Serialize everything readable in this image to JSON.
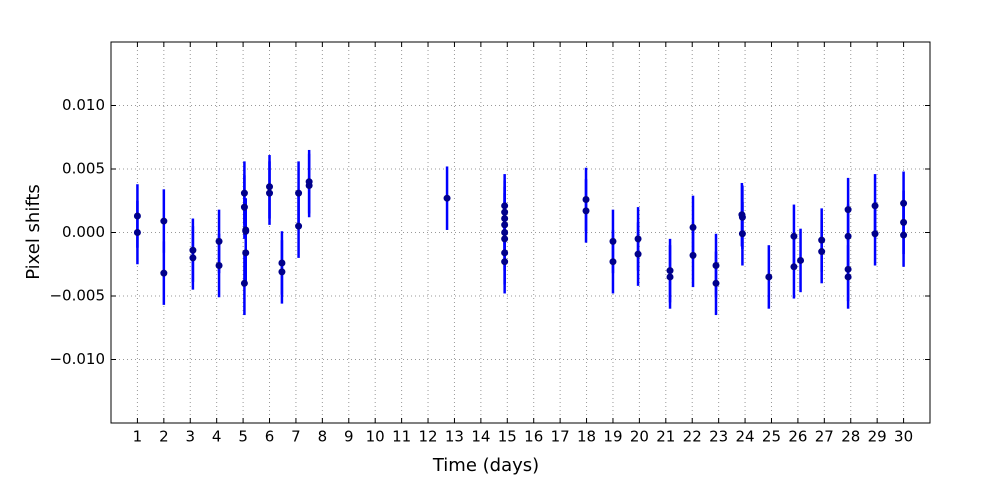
{
  "chart_data": {
    "type": "errorbar",
    "xlabel": "Time (days)",
    "ylabel": "Pixel shifts",
    "xlim": [
      0,
      31
    ],
    "ylim": [
      -0.015,
      0.015
    ],
    "xticks": [
      1,
      2,
      3,
      4,
      5,
      6,
      7,
      8,
      9,
      10,
      11,
      12,
      13,
      14,
      15,
      16,
      17,
      18,
      19,
      20,
      21,
      22,
      23,
      24,
      25,
      26,
      27,
      28,
      29,
      30
    ],
    "yticks": [
      {
        "value": -0.01,
        "label": "−0.010"
      },
      {
        "value": -0.005,
        "label": "−0.005"
      },
      {
        "value": 0,
        "label": "0.000"
      },
      {
        "value": 0.005,
        "label": "0.005"
      },
      {
        "value": 0.01,
        "label": "0.010"
      }
    ],
    "grid": true,
    "series": [
      {
        "color": "#0000ff",
        "marker_color": "#00008b",
        "x": [
          1,
          1,
          2,
          2,
          3.1,
          3.1,
          4.09,
          4.09,
          5.05,
          5.05,
          5.1,
          5.1,
          5.1,
          5.05,
          6,
          6,
          6.47,
          6.47,
          7.1,
          7.1,
          7.5,
          7.5,
          12.72,
          14.9,
          14.9,
          14.9,
          14.9,
          14.9,
          14.9,
          14.9,
          14.9,
          17.98,
          17.98,
          19,
          19,
          19.95,
          19.95,
          21.16,
          21.16,
          22.03,
          22.03,
          22.9,
          22.9,
          23.88,
          23.9,
          23.9,
          24.9,
          25.85,
          25.85,
          26.1,
          26.9,
          26.9,
          27.9,
          27.9,
          27.9,
          27.9,
          28.92,
          28.92,
          30,
          30,
          30
        ],
        "values": [
          0.0013,
          0,
          0.0009,
          -0.0032,
          -0.0014,
          -0.002,
          -0.0007,
          -0.0026,
          0.0031,
          0.002,
          0.0002,
          0.0001,
          -0.0016,
          -0.004,
          0.0036,
          0.0031,
          -0.0024,
          -0.0031,
          0.0031,
          0.0005,
          0.004,
          0.0037,
          0.0027,
          0.0021,
          0.0016,
          0.0011,
          0.0006,
          0,
          -0.0005,
          -0.0016,
          -0.0023,
          0.0026,
          0.0017,
          -0.0007,
          -0.0023,
          -0.0005,
          -0.0017,
          -0.003,
          -0.0035,
          0.0004,
          -0.0018,
          -0.0026,
          -0.004,
          0.0014,
          0.0012,
          -0.0001,
          -0.0035,
          -0.0003,
          -0.0027,
          -0.0022,
          -0.0006,
          -0.0015,
          0.0018,
          -0.0003,
          -0.0029,
          -0.0035,
          0.0021,
          -0.0001,
          0.0023,
          0.0008,
          -0.0002
        ],
        "errors": [
          0.0025,
          0.0025,
          0.0025,
          0.0025,
          0.0025,
          0.0025,
          0.0025,
          0.0025,
          0.0025,
          0.0025,
          0.0025,
          0.0025,
          0.0025,
          0.0025,
          0.0025,
          0.0025,
          0.0025,
          0.0025,
          0.0025,
          0.0025,
          0.0025,
          0.0025,
          0.0025,
          0.0025,
          0.0025,
          0.0025,
          0.0025,
          0.0025,
          0.0025,
          0.0025,
          0.0025,
          0.0025,
          0.0025,
          0.0025,
          0.0025,
          0.0025,
          0.0025,
          0.0025,
          0.0025,
          0.0025,
          0.0025,
          0.0025,
          0.0025,
          0.0025,
          0.0025,
          0.0025,
          0.0025,
          0.0025,
          0.0025,
          0.0025,
          0.0025,
          0.0025,
          0.0025,
          0.0025,
          0.0025,
          0.0025,
          0.0025,
          0.0025,
          0.0025,
          0.0025,
          0.0025
        ]
      }
    ]
  }
}
